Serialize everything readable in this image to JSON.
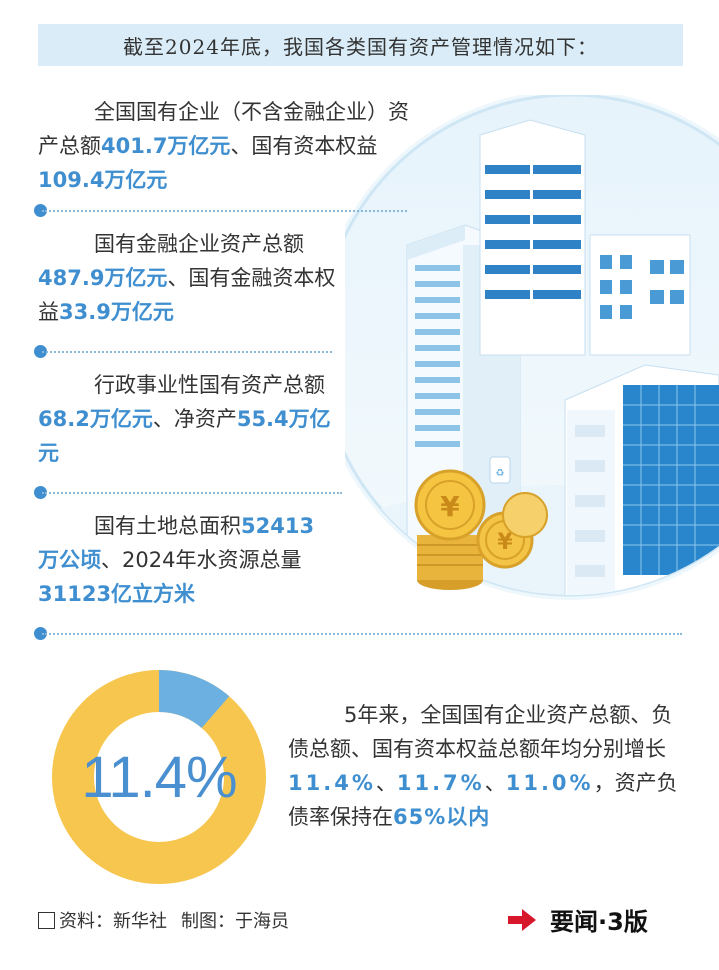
{
  "header": {
    "title": "截至2024年底，我国各类国有资产管理情况如下："
  },
  "items": [
    {
      "pre": "全国国有企业（不含金融企业）资产总额",
      "hl1": "401.7万亿元",
      "mid": "、国有资本权益",
      "hl2": "109.4万亿元",
      "post": ""
    },
    {
      "pre": "国有金融企业资产总额",
      "hl1": "487.9万亿元",
      "mid": "、国有金融资本权益",
      "hl2": "33.9万亿元",
      "post": ""
    },
    {
      "pre": "行政事业性国有资产总额",
      "hl1": "68.2万亿元",
      "mid": "、净资产",
      "hl2": "55.4万亿元",
      "post": ""
    },
    {
      "pre": "国有土地总面积",
      "hl1": "52413万公顷",
      "mid": "、2024年水资源总量",
      "hl2": "31123亿立方米",
      "post": ""
    }
  ],
  "donut": {
    "percent_label": "11.4%",
    "value": 11.4,
    "accent_color": "#6cb0e2",
    "base_color": "#f6c64f"
  },
  "summary": {
    "pre": "5年来，全国国有企业资产总额、负债总额、国有资本权益总额年均分别增长",
    "hl1": "11.4%",
    "sep1": "、",
    "hl2": "11.7%",
    "sep2": "、",
    "hl3": "11.0%",
    "mid": "，资产负债率保持在",
    "hl4": "65%以内"
  },
  "footer": {
    "source": "资料：新华社",
    "maker": "制图：于海员",
    "ref": "要闻·3版"
  },
  "colors": {
    "highlight": "#3f8fd0",
    "banner_bg": "#d9ecf7",
    "arrow": "#d7182a"
  },
  "icons": [
    "yuan-coin-icon",
    "recycle-bin-icon",
    "red-arrow-icon"
  ]
}
